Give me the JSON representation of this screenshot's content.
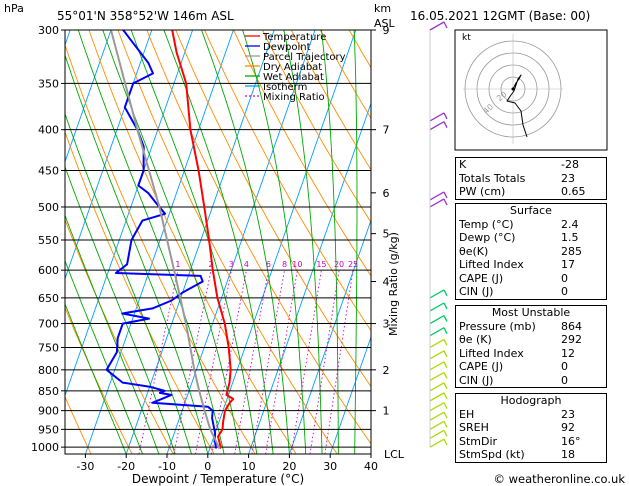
{
  "header": {
    "location": "55°01'N  358°52'W  146m  ASL",
    "date": "16.05.2021  12GMT  (Base: 00)",
    "hpa_label": "hPa",
    "km_label": "km",
    "asl_label": "ASL",
    "lcl_label": "LCL"
  },
  "footer": {
    "xlabel": "Dewpoint / Temperature (°C)",
    "credit": "© weatheronline.co.uk",
    "mixing_label": "Mixing Ratio (g/kg)"
  },
  "legend": [
    {
      "label": "Temperature",
      "color": "#ff0000",
      "dash": ""
    },
    {
      "label": "Dewpoint",
      "color": "#0000ff",
      "dash": ""
    },
    {
      "label": "Parcel Trajectory",
      "color": "#999999",
      "dash": ""
    },
    {
      "label": "Dry Adiabat",
      "color": "#ff8c00",
      "dash": ""
    },
    {
      "label": "Wet Adiabat",
      "color": "#00aa00",
      "dash": ""
    },
    {
      "label": "Isotherm",
      "color": "#00a0ff",
      "dash": ""
    },
    {
      "label": "Mixing Ratio",
      "color": "#cc00cc",
      "dash": "2,2"
    }
  ],
  "chart_data": {
    "type": "line",
    "title": "55°01'N 358°52'W 146m ASL",
    "xlabel": "Dewpoint / Temperature (°C)",
    "ylabel": "hPa",
    "xlim": [
      -35,
      40
    ],
    "ylim": [
      1020,
      300
    ],
    "pressure_ticks": [
      300,
      350,
      400,
      450,
      500,
      550,
      600,
      650,
      700,
      750,
      800,
      850,
      900,
      950,
      1000
    ],
    "temp_ticks": [
      -30,
      -20,
      -10,
      0,
      10,
      20,
      30,
      40
    ],
    "km_ticks": [
      {
        "p": 300,
        "label": "9"
      },
      {
        "p": 400,
        "label": "7"
      },
      {
        "p": 480,
        "label": "6"
      },
      {
        "p": 540,
        "label": "5"
      },
      {
        "p": 620,
        "label": "4"
      },
      {
        "p": 700,
        "label": "3"
      },
      {
        "p": 800,
        "label": "2"
      },
      {
        "p": 900,
        "label": "1"
      }
    ],
    "mixing_ratio_labels": [
      "1",
      "2",
      "3",
      "4",
      "6",
      "8",
      "10",
      "15",
      "20",
      "25"
    ],
    "mixing_ratio_values": [
      1,
      2,
      3,
      4,
      6,
      8,
      10,
      15,
      20,
      25
    ],
    "series": [
      {
        "name": "Temperature",
        "points": [
          [
            1004,
            2.4
          ],
          [
            1000,
            2.6
          ],
          [
            970,
            1
          ],
          [
            950,
            1.5
          ],
          [
            930,
            1
          ],
          [
            900,
            0.5
          ],
          [
            880,
            1
          ],
          [
            870,
            1.5
          ],
          [
            860,
            -0.5
          ],
          [
            830,
            -0.8
          ],
          [
            800,
            -1.6
          ],
          [
            750,
            -4
          ],
          [
            700,
            -7
          ],
          [
            650,
            -11
          ],
          [
            600,
            -14.5
          ],
          [
            550,
            -18
          ],
          [
            500,
            -22
          ],
          [
            450,
            -26.5
          ],
          [
            400,
            -32
          ],
          [
            350,
            -37
          ],
          [
            320,
            -42
          ],
          [
            300,
            -45
          ]
        ]
      },
      {
        "name": "Dewpoint",
        "points": [
          [
            1004,
            1.5
          ],
          [
            1000,
            1.4
          ],
          [
            980,
            0.5
          ],
          [
            960,
            0
          ],
          [
            940,
            -1
          ],
          [
            920,
            -2
          ],
          [
            900,
            -2.5
          ],
          [
            890,
            -4
          ],
          [
            880,
            -18
          ],
          [
            870,
            -16
          ],
          [
            860,
            -14
          ],
          [
            855,
            -17
          ],
          [
            850,
            -16
          ],
          [
            840,
            -20
          ],
          [
            830,
            -27
          ],
          [
            800,
            -32
          ],
          [
            760,
            -31
          ],
          [
            730,
            -32
          ],
          [
            700,
            -32
          ],
          [
            690,
            -26
          ],
          [
            680,
            -33
          ],
          [
            670,
            -26
          ],
          [
            655,
            -22
          ],
          [
            640,
            -20
          ],
          [
            620,
            -16
          ],
          [
            610,
            -17
          ],
          [
            605,
            -38
          ],
          [
            590,
            -36
          ],
          [
            550,
            -37
          ],
          [
            520,
            -36
          ],
          [
            510,
            -31
          ],
          [
            495,
            -34
          ],
          [
            480,
            -37
          ],
          [
            470,
            -40
          ],
          [
            450,
            -40
          ],
          [
            420,
            -42
          ],
          [
            400,
            -45
          ],
          [
            375,
            -50
          ],
          [
            350,
            -50
          ],
          [
            340,
            -46
          ],
          [
            330,
            -48
          ],
          [
            300,
            -57
          ]
        ]
      },
      {
        "name": "Parcel Trajectory",
        "points": [
          [
            1004,
            2.4
          ],
          [
            950,
            -1.5
          ],
          [
            900,
            -4.5
          ],
          [
            850,
            -7.5
          ],
          [
            800,
            -10.5
          ],
          [
            700,
            -16.5
          ],
          [
            600,
            -24
          ],
          [
            500,
            -33
          ],
          [
            400,
            -45
          ],
          [
            300,
            -60
          ]
        ]
      }
    ]
  },
  "hodograph": {
    "label": "kt",
    "ring_labels": [
      "20",
      "40"
    ]
  },
  "indices": [
    {
      "label": "K",
      "value": "-28"
    },
    {
      "label": "Totals Totals",
      "value": "23"
    },
    {
      "label": "PW (cm)",
      "value": "0.65"
    }
  ],
  "surface": {
    "title": "Surface",
    "rows": [
      {
        "label": "Temp (°C)",
        "value": "2.4"
      },
      {
        "label": "Dewp (°C)",
        "value": "1.5"
      },
      {
        "label": "θe(K)",
        "value": "285"
      },
      {
        "label": "Lifted Index",
        "value": "17"
      },
      {
        "label": "CAPE (J)",
        "value": "0"
      },
      {
        "label": "CIN (J)",
        "value": "0"
      }
    ]
  },
  "most_unstable": {
    "title": "Most Unstable",
    "rows": [
      {
        "label": "Pressure (mb)",
        "value": "864"
      },
      {
        "label": "θe (K)",
        "value": "292"
      },
      {
        "label": "Lifted Index",
        "value": "12"
      },
      {
        "label": "CAPE (J)",
        "value": "0"
      },
      {
        "label": "CIN (J)",
        "value": "0"
      }
    ]
  },
  "hodo_table": {
    "title": "Hodograph",
    "rows": [
      {
        "label": "EH",
        "value": "23"
      },
      {
        "label": "SREH",
        "value": "92"
      },
      {
        "label": "StmDir",
        "value": "16°"
      },
      {
        "label": "StmSpd (kt)",
        "value": "18"
      }
    ]
  },
  "colors": {
    "temperature": "#ff0000",
    "dewpoint": "#0000ff",
    "parcel": "#999999",
    "dry_adiabat": "#ff8c00",
    "wet_adiabat": "#00aa00",
    "isotherm": "#00a0ff",
    "mixing": "#cc00cc",
    "wind_low": "#aadd00",
    "wind_mid": "#00cc66",
    "wind_high": "#9933cc"
  }
}
